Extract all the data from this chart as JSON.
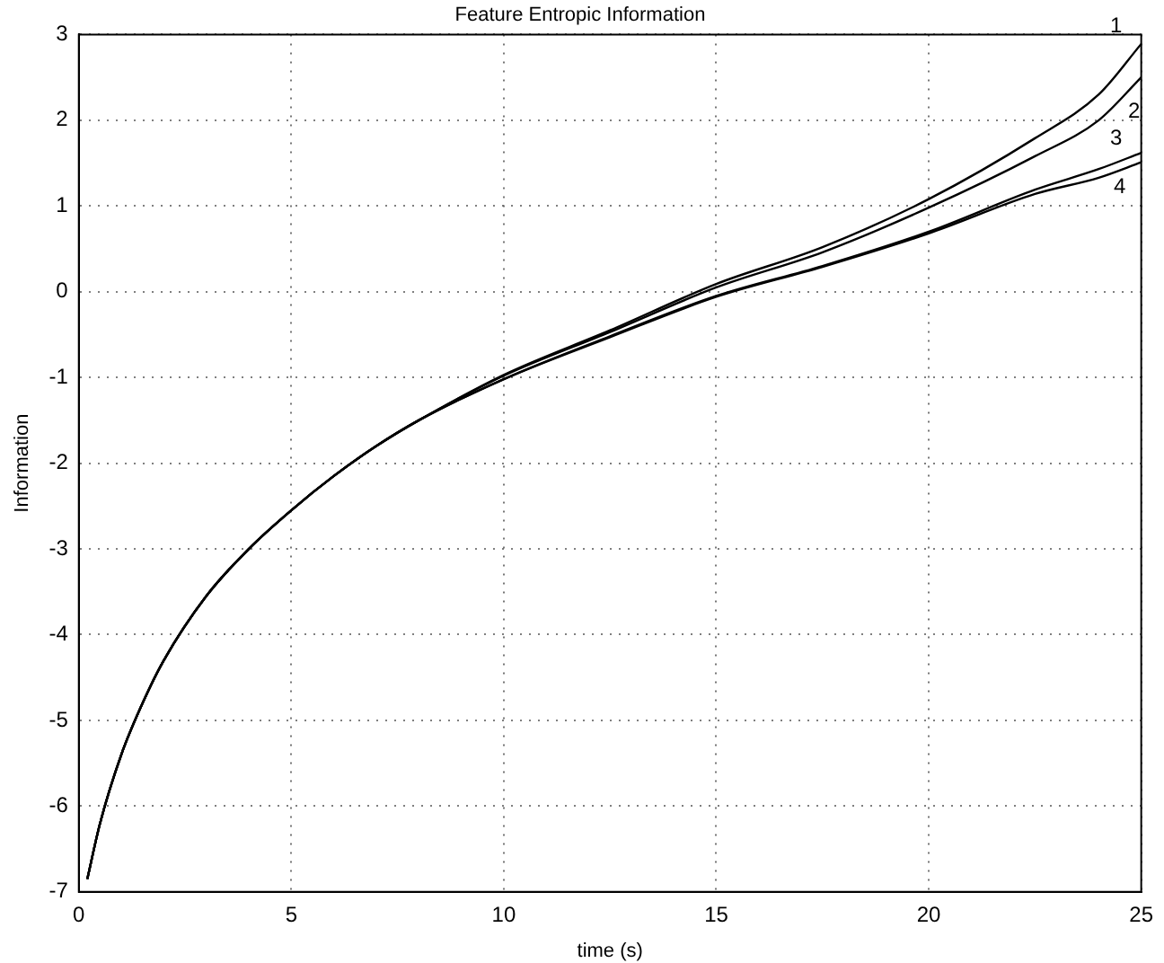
{
  "chart_data": {
    "type": "line",
    "title": "Feature Entropic Information",
    "xlabel": "time (s)",
    "ylabel": "Information",
    "xlim": [
      0,
      25
    ],
    "xticks": [
      0,
      5,
      10,
      15,
      20,
      25
    ],
    "ylim": [
      -7,
      3
    ],
    "yticks": [
      -7,
      -6,
      -5,
      -4,
      -3,
      -2,
      -1,
      0,
      1,
      2,
      3
    ],
    "grid": true,
    "legend": false,
    "marker": "none",
    "line_style": "solid",
    "x": [
      0.2,
      0.5,
      1,
      1.5,
      2,
      3,
      4,
      5,
      6,
      7,
      8,
      10,
      12.5,
      15,
      17.5,
      20,
      22.5,
      24,
      25
    ],
    "series": [
      {
        "name": "1",
        "color": "#000000",
        "values": [
          -6.85,
          -6.2,
          -5.4,
          -4.8,
          -4.3,
          -3.55,
          -3.0,
          -2.55,
          -2.15,
          -1.8,
          -1.5,
          -0.97,
          -0.45,
          0.09,
          0.52,
          1.08,
          1.79,
          2.3,
          2.89
        ]
      },
      {
        "name": "2",
        "color": "#000000",
        "values": [
          -6.85,
          -6.2,
          -5.4,
          -4.8,
          -4.3,
          -3.55,
          -3.0,
          -2.55,
          -2.15,
          -1.8,
          -1.5,
          -0.98,
          -0.47,
          0.05,
          0.46,
          0.98,
          1.58,
          2.0,
          2.5
        ]
      },
      {
        "name": "3",
        "color": "#000000",
        "values": [
          -6.85,
          -6.2,
          -5.4,
          -4.8,
          -4.3,
          -3.55,
          -3.0,
          -2.55,
          -2.15,
          -1.8,
          -1.5,
          -1.02,
          -0.52,
          -0.05,
          0.3,
          0.7,
          1.19,
          1.43,
          1.62
        ]
      },
      {
        "name": "4",
        "color": "#000000",
        "values": [
          -6.85,
          -6.2,
          -5.4,
          -4.8,
          -4.3,
          -3.55,
          -3.0,
          -2.55,
          -2.15,
          -1.8,
          -1.5,
          -1.02,
          -0.53,
          -0.06,
          0.29,
          0.68,
          1.14,
          1.33,
          1.51
        ]
      }
    ]
  }
}
